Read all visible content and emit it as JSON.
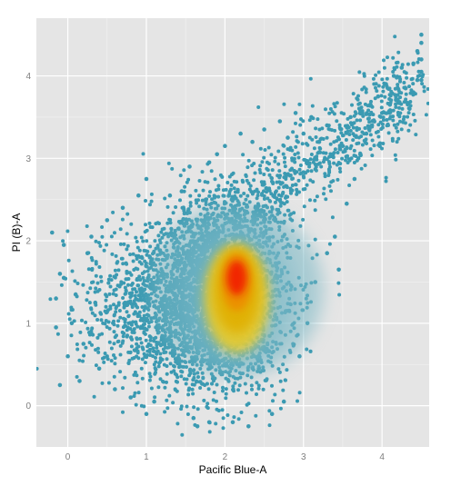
{
  "chart_data": {
    "type": "scatter",
    "title": "",
    "xlabel": "Pacific Blue-A",
    "ylabel": "PI (B)-A",
    "xlim": [
      -0.4,
      4.6
    ],
    "ylim": [
      -0.5,
      4.7
    ],
    "x_ticks": [
      0,
      1,
      2,
      3,
      4
    ],
    "y_ticks": [
      0,
      1,
      2,
      3,
      4
    ],
    "grid": true,
    "legend": "none",
    "point_color": "#3b9ab2",
    "density_colors": [
      "#3b9ab2",
      "#78b7c5",
      "#ebcc2a",
      "#e1af00",
      "#f21a00"
    ],
    "density_peak": {
      "x": 2.15,
      "y": 1.55
    },
    "points": [
      [
        -0.2,
        2.1
      ],
      [
        -0.15,
        1.3
      ],
      [
        -0.1,
        1.6
      ],
      [
        -0.05,
        1.95
      ],
      [
        -0.1,
        0.25
      ],
      [
        -0.15,
        0.95
      ],
      [
        -0.05,
        1.55
      ],
      [
        0.0,
        0.6
      ],
      [
        0.05,
        1.0
      ],
      [
        0.1,
        1.35
      ],
      [
        0.15,
        0.3
      ],
      [
        0.2,
        0.75
      ],
      [
        0.25,
        1.85
      ],
      [
        0.3,
        2.05
      ],
      [
        0.35,
        1.25
      ],
      [
        0.4,
        0.45
      ],
      [
        0.5,
        2.25
      ],
      [
        0.6,
        0.2
      ],
      [
        0.7,
        2.4
      ],
      [
        0.8,
        0.1
      ],
      [
        0.9,
        2.55
      ],
      [
        1.0,
        -0.1
      ],
      [
        1.0,
        2.75
      ],
      [
        1.1,
        0.05
      ],
      [
        1.3,
        2.55
      ],
      [
        1.45,
        2.6
      ],
      [
        1.55,
        2.9
      ],
      [
        1.6,
        -0.15
      ],
      [
        1.65,
        -0.25
      ],
      [
        1.8,
        -0.2
      ],
      [
        1.8,
        2.95
      ],
      [
        1.9,
        3.05
      ],
      [
        2.0,
        3.15
      ],
      [
        2.1,
        -0.2
      ],
      [
        2.2,
        3.3
      ],
      [
        2.3,
        -0.25
      ],
      [
        2.35,
        3.2
      ],
      [
        2.5,
        3.35
      ],
      [
        2.6,
        -0.1
      ],
      [
        2.7,
        3.45
      ],
      [
        2.75,
        0.05
      ],
      [
        2.8,
        3.25
      ],
      [
        2.9,
        3.55
      ],
      [
        2.95,
        0.6
      ],
      [
        3.0,
        3.3
      ],
      [
        3.05,
        1.0
      ],
      [
        3.1,
        3.5
      ],
      [
        3.15,
        1.5
      ],
      [
        3.2,
        3.2
      ],
      [
        3.3,
        1.85
      ],
      [
        3.3,
        3.4
      ],
      [
        3.4,
        2.05
      ],
      [
        3.45,
        1.65
      ],
      [
        3.5,
        3.15
      ],
      [
        3.55,
        2.45
      ],
      [
        3.6,
        3.5
      ],
      [
        3.65,
        2.75
      ],
      [
        3.7,
        3.0
      ],
      [
        3.75,
        3.55
      ],
      [
        3.8,
        3.3
      ],
      [
        3.85,
        3.65
      ],
      [
        3.9,
        3.45
      ],
      [
        3.95,
        3.75
      ],
      [
        4.0,
        3.55
      ],
      [
        4.05,
        3.9
      ],
      [
        4.1,
        3.65
      ],
      [
        4.15,
        4.0
      ],
      [
        4.2,
        3.7
      ],
      [
        4.25,
        4.1
      ],
      [
        4.3,
        3.85
      ],
      [
        4.35,
        3.6
      ],
      [
        4.4,
        4.15
      ],
      [
        4.45,
        3.95
      ],
      [
        4.5,
        4.5
      ],
      [
        4.5,
        4.4
      ],
      [
        4.5,
        4.2
      ],
      [
        4.5,
        4.05
      ],
      [
        4.5,
        3.95
      ],
      [
        4.45,
        4.3
      ],
      [
        4.4,
        3.8
      ]
    ]
  }
}
